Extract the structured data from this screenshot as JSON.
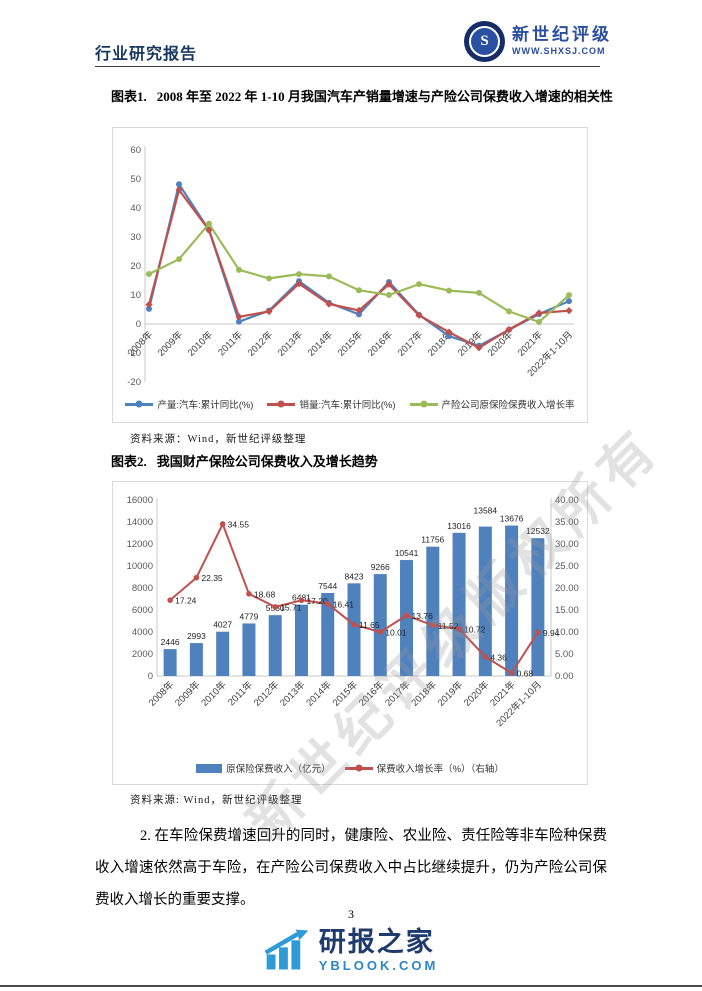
{
  "header": {
    "report_type": "行业研究报告",
    "logo_name": "新世纪评级",
    "logo_url": "WWW.SHXSJ.COM",
    "logo_monogram": "S"
  },
  "figure1": {
    "label": "图表1.",
    "title": "2008 年至 2022 年 1-10 月我国汽车产销量增速与产险公司保费收入增速的相关性",
    "source": "资料来源：Wind，新世纪评级整理"
  },
  "figure2": {
    "label": "图表2.",
    "title": "我国财产保险公司保费收入及增长趋势",
    "source": "资料来源: Wind，新世纪评级整理"
  },
  "body_paragraph": "2. 在车险保费增速回升的同时，健康险、农业险、责任险等非车险种保费收入增速依然高于车险，在产险公司保费收入中占比继续提升，仍为产险公司保费收入增长的重要支撑。",
  "page_number": "3",
  "footer": {
    "logo_name": "研报之家",
    "logo_url": "YBLOOK.COM"
  },
  "watermark": "新世纪评级版权所有",
  "chart_data": [
    {
      "type": "line",
      "title": "",
      "categories": [
        "2008年",
        "2009年",
        "2010年",
        "2011年",
        "2012年",
        "2013年",
        "2014年",
        "2015年",
        "2016年",
        "2017年",
        "2018年",
        "2019年",
        "2020年",
        "2021年",
        "2022年1-10月"
      ],
      "series": [
        {
          "name": "产量:汽车:累计同比(%)",
          "color": "#4F81BD",
          "marker": "circle",
          "values": [
            5.2,
            48.2,
            32.4,
            0.8,
            4.6,
            14.8,
            7.3,
            3.3,
            14.5,
            3.2,
            -4.2,
            -7.5,
            -2.0,
            3.4,
            7.9
          ]
        },
        {
          "name": "销量:汽车:累计同比(%)",
          "color": "#C0504D",
          "marker": "diamond",
          "values": [
            6.7,
            46.2,
            32.4,
            2.5,
            4.3,
            13.9,
            6.9,
            4.7,
            13.7,
            3.0,
            -2.8,
            -8.2,
            -1.9,
            3.8,
            4.6
          ]
        },
        {
          "name": "产险公司原保险保费收入增长率",
          "color": "#9BBB59",
          "marker": "circle",
          "values": [
            17.24,
            22.35,
            34.55,
            18.68,
            15.71,
            17.2,
            16.41,
            11.65,
            10.01,
            13.76,
            11.52,
            10.72,
            4.36,
            0.68,
            9.94
          ]
        }
      ],
      "ylim": [
        -20,
        60
      ],
      "ytick_step": 10,
      "grid": false,
      "legend_position": "bottom"
    },
    {
      "type": "bar+line",
      "title": "",
      "categories": [
        "2008年",
        "2009年",
        "2010年",
        "2011年",
        "2012年",
        "2013年",
        "2014年",
        "2015年",
        "2016年",
        "2017年",
        "2018年",
        "2019年",
        "2020年",
        "2021年",
        "2022年1-10月"
      ],
      "bar_series": {
        "name": "原保险保费收入（亿元）",
        "color": "#4F81BD",
        "axis": "left",
        "values": [
          2446,
          2993,
          4027,
          4779,
          5530,
          6481,
          7544,
          8423,
          9266,
          10541,
          11756,
          13016,
          13584,
          13676,
          12532
        ]
      },
      "line_series": {
        "name": "保费收入增长率（%）（右轴）",
        "color": "#C0504D",
        "axis": "right",
        "values": [
          17.24,
          22.35,
          34.55,
          18.68,
          15.71,
          17.2,
          16.41,
          11.65,
          10.01,
          13.76,
          11.52,
          10.72,
          4.36,
          0.68,
          9.94
        ]
      },
      "left_ylim": [
        0,
        16000
      ],
      "left_tick_step": 2000,
      "right_ylim": [
        0,
        40
      ],
      "right_tick_step": 5,
      "data_labels": true,
      "grid": false,
      "legend_position": "bottom"
    }
  ]
}
